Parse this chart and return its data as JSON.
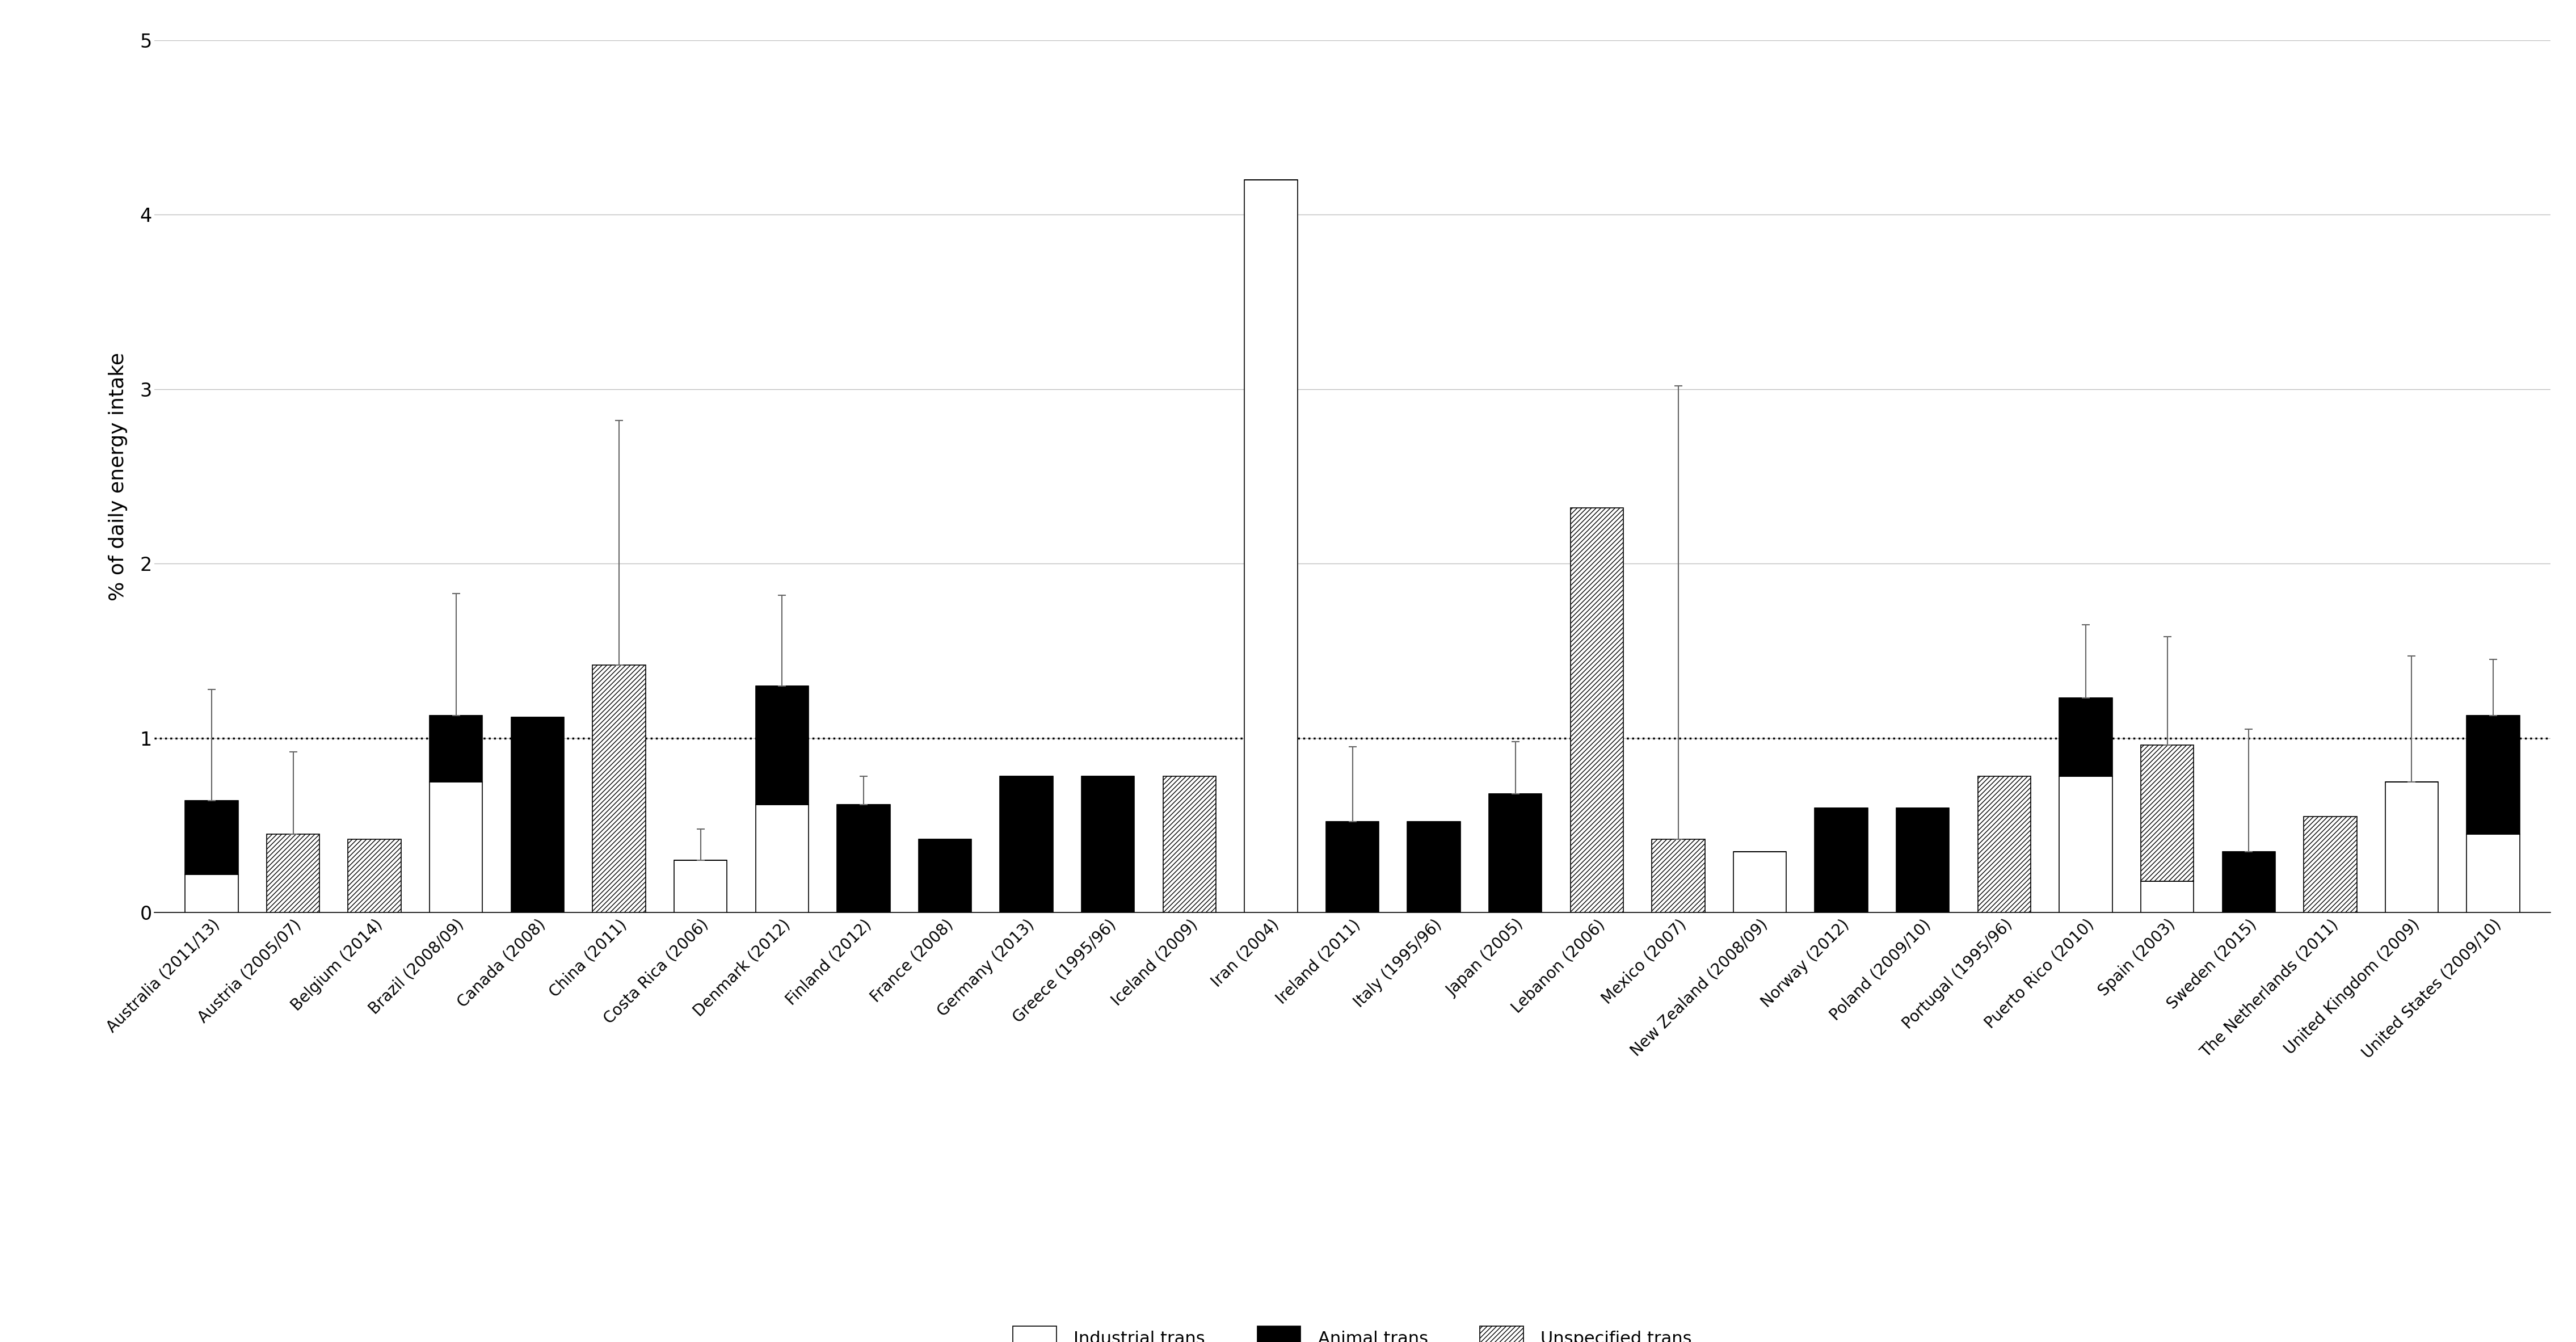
{
  "categories": [
    "Australia (2011/13)",
    "Austria (2005/07)",
    "Belgium (2014)",
    "Brazil (2008/09)",
    "Canada (2008)",
    "China (2011)",
    "Costa Rica (2006)",
    "Denmark (2012)",
    "Finland (2012)",
    "France (2008)",
    "Germany (2013)",
    "Greece (1995/96)",
    "Iceland (2009)",
    "Iran (2004)",
    "Ireland (2011)",
    "Italy (1995/96)",
    "Japan (2005)",
    "Lebanon (2006)",
    "Mexico (2007)",
    "New Zealand (2008/09)",
    "Norway (2012)",
    "Poland (2009/10)",
    "Portugal (1995/96)",
    "Puerto Rico (2010)",
    "Spain (2003)",
    "Sweden (2015)",
    "The Netherlands (2011)",
    "United Kingdom (2009)",
    "United States (2009/10)"
  ],
  "industrial_trans": [
    0.22,
    0.0,
    0.0,
    0.75,
    0.0,
    0.0,
    0.3,
    0.62,
    0.0,
    0.0,
    0.0,
    0.0,
    0.0,
    4.2,
    0.0,
    0.0,
    0.0,
    0.0,
    0.0,
    0.35,
    0.0,
    0.0,
    0.0,
    0.78,
    0.18,
    0.0,
    0.0,
    0.75,
    0.45
  ],
  "animal_trans": [
    0.42,
    0.0,
    0.0,
    0.38,
    1.12,
    0.0,
    0.0,
    0.68,
    0.62,
    0.42,
    0.78,
    0.78,
    0.0,
    0.0,
    0.52,
    0.52,
    0.68,
    0.0,
    0.0,
    0.0,
    0.6,
    0.6,
    0.0,
    0.45,
    0.0,
    0.35,
    0.0,
    0.0,
    0.68
  ],
  "unspecified_trans": [
    0.0,
    0.45,
    0.42,
    0.0,
    0.0,
    1.42,
    0.0,
    0.0,
    0.0,
    0.0,
    0.0,
    0.0,
    0.78,
    0.0,
    0.0,
    0.0,
    0.0,
    2.32,
    0.42,
    0.0,
    0.0,
    0.0,
    0.78,
    0.0,
    0.78,
    0.0,
    0.55,
    0.0,
    0.0
  ],
  "error_top": [
    1.28,
    0.92,
    null,
    1.83,
    null,
    2.82,
    0.48,
    1.82,
    0.78,
    null,
    null,
    null,
    null,
    null,
    0.95,
    null,
    0.98,
    null,
    3.02,
    null,
    null,
    null,
    null,
    1.65,
    1.58,
    1.05,
    null,
    1.47,
    1.45
  ],
  "ylabel": "% of daily energy intake",
  "ylim": [
    0,
    5
  ],
  "yticks": [
    0,
    1,
    2,
    3,
    4,
    5
  ],
  "dotted_line_y": 1.0,
  "bar_width": 0.65,
  "grid_color": "#c0c0c0",
  "hatch_density": "////"
}
